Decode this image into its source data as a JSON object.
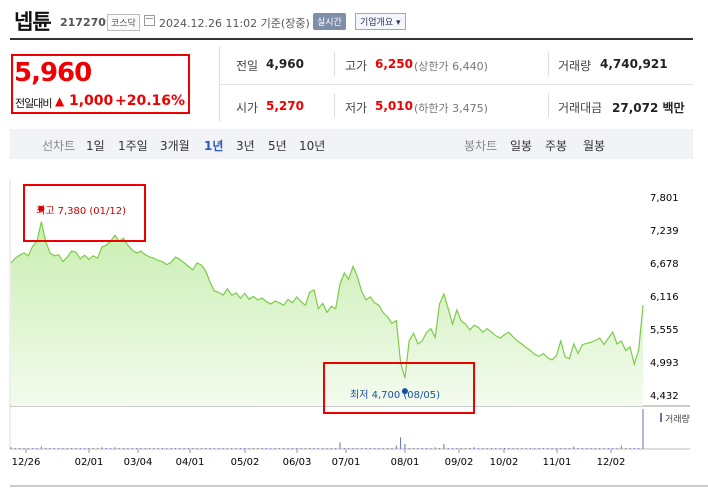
{
  "header": {
    "name": "넵튠",
    "code": "217270",
    "market": "코스닥",
    "datetime": "2024.12.26 11:02 기준(장중)",
    "realtime_label": "실시간",
    "company_button": "기업개요 ▾"
  },
  "quote": {
    "price": "5,960",
    "change_label": "전일대비",
    "change_arrow": "▲",
    "change": "1,000",
    "change_pct": "+20.16%"
  },
  "stats": {
    "prev_close_label": "전일",
    "prev_close": "4,960",
    "high_label": "고가",
    "high": "6,250",
    "upper_limit": "(상한가 6,440)",
    "volume_label": "거래량",
    "volume": "4,740,921",
    "open_label": "시가",
    "open": "5,270",
    "low_label": "저가",
    "low": "5,010",
    "lower_limit": "(하한가 3,475)",
    "amount_label": "거래대금",
    "amount": "27,072 백만"
  },
  "tabs": {
    "line_label": "선차트",
    "periods": [
      "1일",
      "1주일",
      "3개월",
      "1년",
      "3년",
      "5년",
      "10년"
    ],
    "active": "1년",
    "candle_label": "봉차트",
    "candles": [
      "일봉",
      "주봉",
      "월봉"
    ]
  },
  "colors": {
    "up": "#e00000",
    "line": "#7ccc46",
    "fill_top": "#c8eeb0",
    "low_dot": "#1a4fa8"
  },
  "chart_data": {
    "type": "area",
    "x_ticks": [
      "12/26",
      "02/01",
      "03/04",
      "04/01",
      "05/02",
      "06/03",
      "07/01",
      "08/01",
      "09/02",
      "10/02",
      "11/01",
      "12/02"
    ],
    "y_ticks": [
      "7,801",
      "7,239",
      "6,678",
      "6,116",
      "5,555",
      "4,993",
      "4,432"
    ],
    "ylim": [
      4432,
      7801
    ],
    "high_annotation": "최고 7,380 (01/12)",
    "low_annotation": "최저 4,700 (08/05)",
    "volume_label": "거래량",
    "series": [
      {
        "values": [
          6680,
          6760,
          6810,
          6850,
          6800,
          6960,
          7050,
          7380,
          7050,
          6850,
          6800,
          6820,
          6700,
          6780,
          6880,
          6860,
          6750,
          6810,
          6740,
          6800,
          6760,
          6950,
          6980,
          7050,
          7150,
          7050,
          7100,
          6980,
          6900,
          6850,
          6880,
          6820,
          6780,
          6760,
          6720,
          6700,
          6650,
          6690,
          6780,
          6740,
          6680,
          6620,
          6560,
          6680,
          6640,
          6540,
          6350,
          6200,
          6180,
          6130,
          6240,
          6130,
          6170,
          6080,
          6160,
          6060,
          6110,
          6050,
          6080,
          6020,
          5980,
          6030,
          6000,
          5960,
          6060,
          6000,
          6100,
          6020,
          5960,
          6180,
          6220,
          5900,
          5990,
          5840,
          5940,
          5900,
          6320,
          6510,
          6400,
          6620,
          6450,
          6200,
          6050,
          6100,
          6000,
          5960,
          5830,
          5760,
          5650,
          5700,
          4980,
          4720,
          5360,
          5480,
          5300,
          5350,
          5500,
          5560,
          5410,
          5980,
          6150,
          5900,
          5640,
          5880,
          5690,
          5640,
          5540,
          5620,
          5580,
          5500,
          5560,
          5500,
          5440,
          5400,
          5460,
          5500,
          5420,
          5350,
          5300,
          5240,
          5190,
          5120,
          5090,
          5140,
          5060,
          5030,
          5100,
          5350,
          5080,
          5050,
          5300,
          5140,
          5290,
          5310,
          5330,
          5360,
          5400,
          5290,
          5400,
          5500,
          5300,
          5350,
          5190,
          5250,
          4960,
          5200,
          5960
        ]
      }
    ],
    "volume": [
      2,
      1,
      1,
      1,
      1,
      1,
      1,
      3,
      1,
      1,
      1,
      1,
      1,
      1,
      1,
      1,
      1,
      1,
      1,
      1,
      1,
      2,
      1,
      1,
      2,
      1,
      1,
      1,
      1,
      1,
      1,
      1,
      1,
      1,
      1,
      1,
      1,
      1,
      1,
      1,
      1,
      1,
      1,
      1,
      1,
      1,
      1,
      1,
      1,
      1,
      1,
      1,
      1,
      1,
      1,
      1,
      1,
      1,
      1,
      1,
      1,
      1,
      1,
      1,
      1,
      1,
      1,
      1,
      1,
      1,
      1,
      1,
      1,
      1,
      1,
      1,
      8,
      1,
      1,
      1,
      1,
      1,
      1,
      1,
      1,
      1,
      1,
      1,
      1,
      4,
      14,
      6,
      1,
      1,
      1,
      1,
      1,
      1,
      2,
      1,
      6,
      1,
      1,
      1,
      1,
      1,
      1,
      2,
      1,
      1,
      1,
      1,
      1,
      1,
      1,
      1,
      1,
      1,
      1,
      1,
      1,
      1,
      1,
      1,
      1,
      1,
      1,
      1,
      1,
      1,
      3,
      1,
      1,
      1,
      1,
      1,
      1,
      1,
      1,
      1,
      1,
      4,
      1,
      1,
      1,
      1,
      48
    ]
  }
}
